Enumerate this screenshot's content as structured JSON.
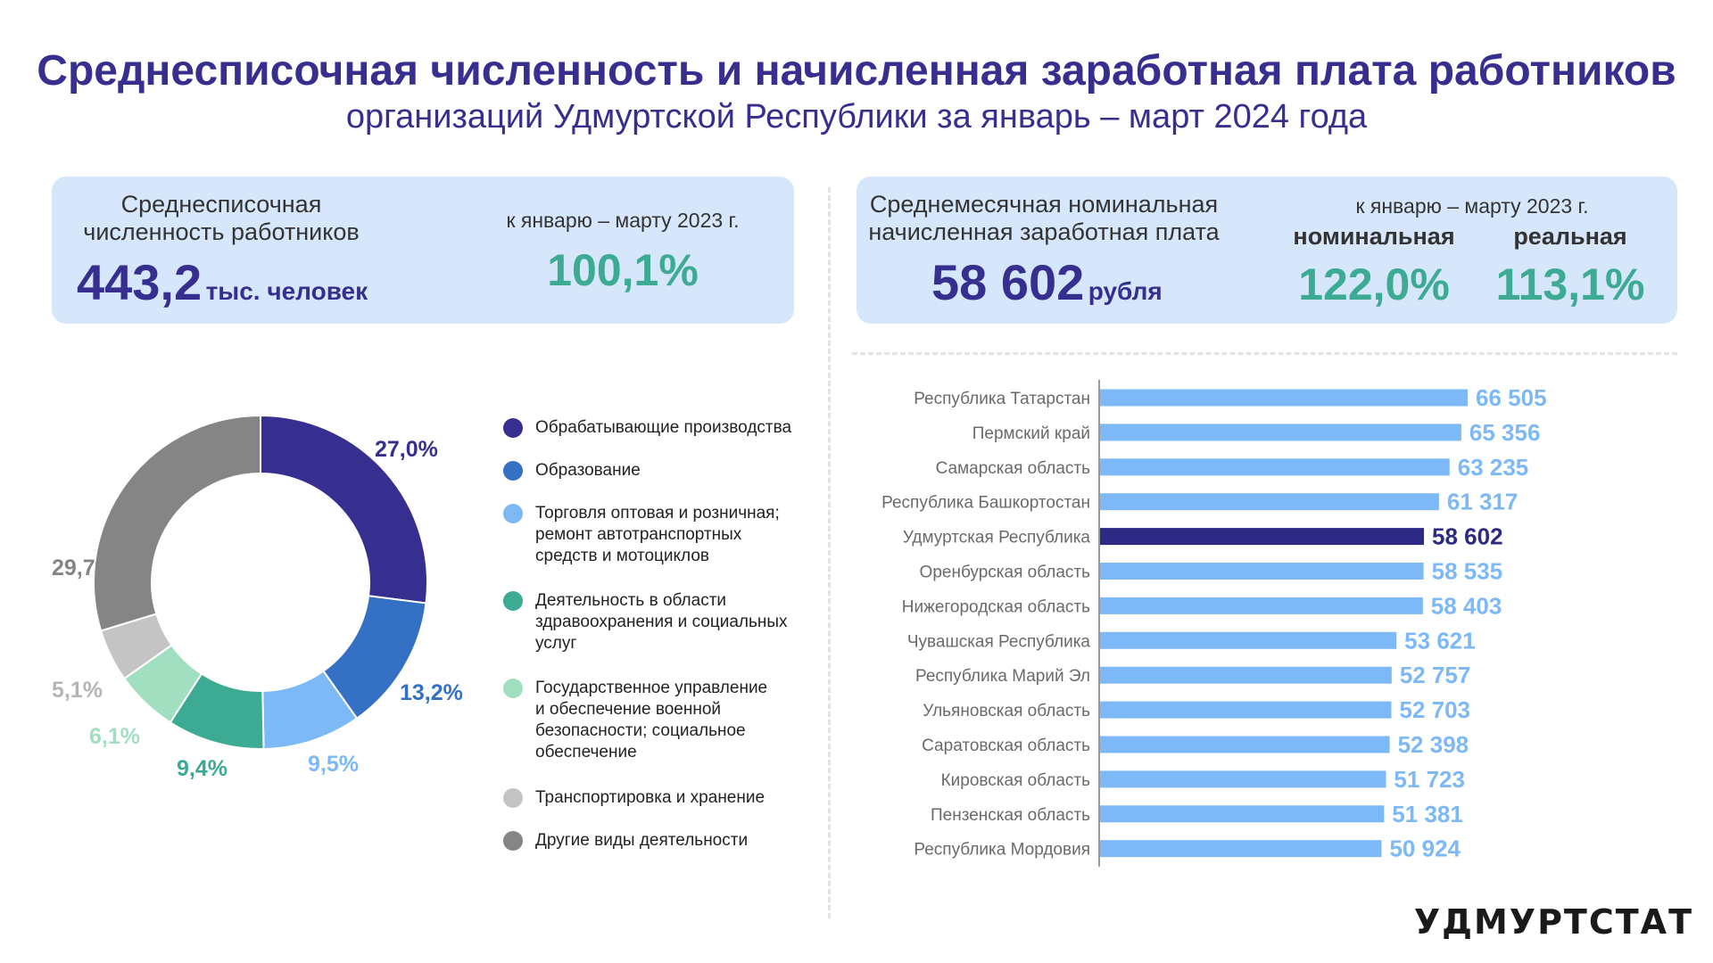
{
  "title": "Среднесписочная численность и начисленная заработная плата работников",
  "subtitle": "организаций Удмуртской Республики за январь – март 2024 года",
  "employees_card": {
    "caption_line1": "Среднесписочная",
    "caption_line2": "численность работников",
    "value": "443,2",
    "unit": "тыс. человек",
    "compare_caption": "к январю – марту 2023 г.",
    "compare_value": "100,1%"
  },
  "salary_card": {
    "caption_line1": "Среднемесячная номинальная",
    "caption_line2": "начисленная заработная плата",
    "value": "58 602",
    "unit": "рубля",
    "compare_caption": "к январю – марту 2023 г.",
    "nominal_label": "номинальная",
    "nominal_value": "122,0%",
    "real_label": "реальная",
    "real_value": "113,1%"
  },
  "logo": "УДМУРТСТАТ",
  "chart_data": [
    {
      "type": "pie",
      "variant": "donut",
      "title": "",
      "categories": [
        "Обрабатывающие производства",
        "Образование",
        "Торговля оптовая и розничная; ремонт автотранспортных средств и мотоциклов",
        "Деятельность в области здравоохранения и социальных услуг",
        "Государственное управление и обеспечение военной безопасности; социальное обеспечение",
        "Транспортировка и хранение",
        "Другие виды деятельности"
      ],
      "legend_lines": [
        [
          "Обрабатывающие производства"
        ],
        [
          "Образование"
        ],
        [
          "Торговля оптовая и розничная;",
          "ремонт автотранспортных",
          "средств и мотоциклов"
        ],
        [
          "Деятельность в области",
          "здравоохранения и социальных",
          "услуг"
        ],
        [
          "Государственное управление",
          "и обеспечение военной",
          "безопасности; социальное",
          "обеспечение"
        ],
        [
          "Транспортировка и хранение"
        ],
        [
          "Другие виды деятельности"
        ]
      ],
      "values": [
        27.0,
        13.2,
        9.5,
        9.4,
        6.1,
        5.1,
        29.7
      ],
      "labels": [
        "27,0%",
        "13,2%",
        "9,5%",
        "9,4%",
        "6,1%",
        "5,1%",
        "29,7%"
      ],
      "colors": [
        "#372f8f",
        "#3471c4",
        "#7db8f7",
        "#3daa93",
        "#a2dfc0",
        "#c4c4c4",
        "#858585"
      ],
      "legend": "right"
    },
    {
      "type": "bar",
      "orientation": "horizontal",
      "title": "",
      "categories": [
        "Республика Татарстан",
        "Пермский край",
        "Самарская область",
        "Республика Башкортостан",
        "Удмуртская Республика",
        "Оренбурская область",
        "Нижегородская область",
        "Чувашская Республика",
        "Республика Марий Эл",
        "Ульяновская область",
        "Саратовская область",
        "Кировская область",
        "Пензенская область",
        "Республика Мордовия"
      ],
      "values": [
        66505,
        65356,
        63235,
        61317,
        58602,
        58535,
        58403,
        53621,
        52757,
        52703,
        52398,
        51723,
        51381,
        50924
      ],
      "labels": [
        "66 505",
        "65 356",
        "63 235",
        "61 317",
        "58 602",
        "58 535",
        "58 403",
        "53 621",
        "52 757",
        "52 703",
        "52 398",
        "51 723",
        "51 381",
        "50 924"
      ],
      "highlight_index": 4,
      "bar_color": "#7db8f7",
      "highlight_color": "#2d2a86",
      "grid": false
    }
  ]
}
